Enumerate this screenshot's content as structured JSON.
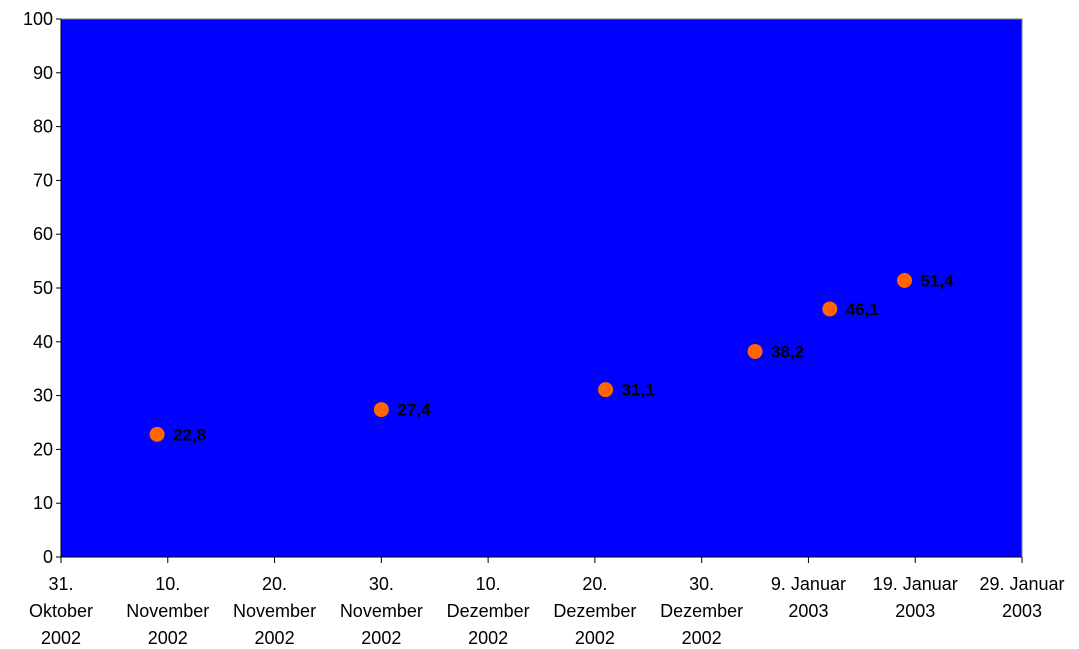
{
  "chart_data": {
    "type": "scatter",
    "title": "",
    "xlabel": "",
    "ylabel": "",
    "ylim": [
      0,
      100
    ],
    "y_ticks": [
      0,
      10,
      20,
      30,
      40,
      50,
      60,
      70,
      80,
      90,
      100
    ],
    "xlim": [
      "2002-10-31",
      "2003-01-29"
    ],
    "x_ticks": [
      {
        "date": "2002-10-31",
        "lines": [
          "31.",
          "Oktober",
          "2002"
        ]
      },
      {
        "date": "2002-11-10",
        "lines": [
          "10.",
          "November",
          "2002"
        ]
      },
      {
        "date": "2002-11-20",
        "lines": [
          "20.",
          "November",
          "2002"
        ]
      },
      {
        "date": "2002-11-30",
        "lines": [
          "30.",
          "November",
          "2002"
        ]
      },
      {
        "date": "2002-12-10",
        "lines": [
          "10.",
          "Dezember",
          "2002"
        ]
      },
      {
        "date": "2002-12-20",
        "lines": [
          "20.",
          "Dezember",
          "2002"
        ]
      },
      {
        "date": "2002-12-30",
        "lines": [
          "30.",
          "Dezember",
          "2002"
        ]
      },
      {
        "date": "2003-01-09",
        "lines": [
          "9. Januar",
          "2003"
        ]
      },
      {
        "date": "2003-01-19",
        "lines": [
          "19. Januar",
          "2003"
        ]
      },
      {
        "date": "2003-01-29",
        "lines": [
          "29. Januar",
          "2003"
        ]
      }
    ],
    "points": [
      {
        "x": "2002-11-09",
        "y": 22.8,
        "label": "22,8"
      },
      {
        "x": "2002-11-30",
        "y": 27.4,
        "label": "27,4"
      },
      {
        "x": "2002-12-21",
        "y": 31.1,
        "label": "31,1"
      },
      {
        "x": "2003-01-04",
        "y": 38.2,
        "label": "38,2"
      },
      {
        "x": "2003-01-11",
        "y": 46.1,
        "label": "46,1"
      },
      {
        "x": "2003-01-18",
        "y": 51.4,
        "label": "51,4"
      }
    ],
    "grid": false,
    "legend": "none",
    "colors": {
      "plot_background": "#0000FF",
      "marker": "#FF6600",
      "axis": "#000000"
    }
  }
}
